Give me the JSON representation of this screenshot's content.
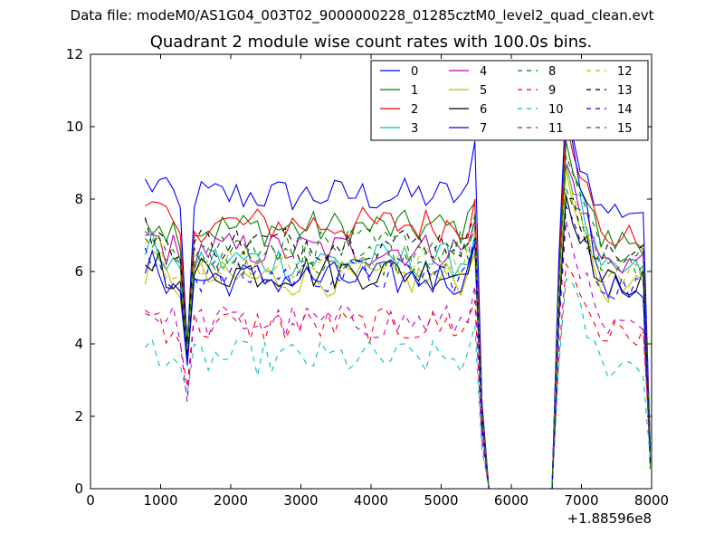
{
  "chart_data": {
    "type": "line",
    "suptitle": "Data file: modeM0/AS1G04_003T02_9000000228_01285cztM0_level2_quad_clean.evt",
    "title": "Quadrant 2 module wise count rates with 100.0s bins.",
    "xlabel": "",
    "ylabel": "",
    "xlim": [
      0,
      8000
    ],
    "ylim": [
      0,
      12
    ],
    "x_offset_label": "+1.88596e8",
    "xticks": [
      "0",
      "1000",
      "2000",
      "3000",
      "4000",
      "5000",
      "6000",
      "7000",
      "8000"
    ],
    "yticks": [
      "0",
      "2",
      "4",
      "6",
      "8",
      "10",
      "12"
    ],
    "grid": false,
    "legend_position": "top-right",
    "legend_columns": 4,
    "segment1_x": [
      780,
      880,
      980,
      1080,
      1180,
      1280,
      1380,
      1480,
      1580,
      1680,
      1780,
      1880,
      1980,
      2080,
      2180,
      2280,
      2380,
      2480,
      2580,
      2680,
      2780,
      2880,
      2980,
      3080,
      3180,
      3280,
      3380,
      3480,
      3580,
      3680,
      3780,
      3880,
      3980,
      4080,
      4180,
      4280,
      4380,
      4480,
      4580,
      4680,
      4780,
      4880,
      4980,
      5080,
      5180,
      5280,
      5380,
      5480,
      5580,
      5680
    ],
    "segment2_x": [
      6580,
      6680,
      6780,
      6880,
      6980,
      7080,
      7180,
      7280,
      7380,
      7480,
      7580,
      7680,
      7780,
      7880,
      7980
    ],
    "series": [
      {
        "name": "0",
        "color": "#0000ff",
        "dash": "",
        "base": 8.1,
        "peak": 9.6,
        "peak2": 10.0,
        "dip": 3.9
      },
      {
        "name": "1",
        "color": "#008000",
        "dash": "",
        "base": 7.2,
        "peak": 7.9,
        "peak2": 9.6,
        "dip": 4.0
      },
      {
        "name": "2",
        "color": "#ff0000",
        "dash": "",
        "base": 7.3,
        "peak": 8.0,
        "peak2": 10.2,
        "dip": 3.7
      },
      {
        "name": "3",
        "color": "#00bfbf",
        "dash": "",
        "base": 6.3,
        "peak": 7.0,
        "peak2": 9.0,
        "dip": 3.6
      },
      {
        "name": "4",
        "color": "#bf00bf",
        "dash": "",
        "base": 6.6,
        "peak": 7.4,
        "peak2": 9.0,
        "dip": 3.8
      },
      {
        "name": "5",
        "color": "#bfbf00",
        "dash": "",
        "base": 5.8,
        "peak": 6.5,
        "peak2": 8.8,
        "dip": 3.5
      },
      {
        "name": "6",
        "color": "#000000",
        "dash": "",
        "base": 6.0,
        "peak": 6.8,
        "peak2": 8.1,
        "dip": 3.6
      },
      {
        "name": "7",
        "color": "#0000ff",
        "dash": "",
        "base": 5.8,
        "peak": 6.8,
        "peak2": 10.8,
        "dip": 3.4
      },
      {
        "name": "8",
        "color": "#008000",
        "dash": "6,6",
        "base": 6.4,
        "peak": 7.1,
        "peak2": 8.3,
        "dip": 3.8
      },
      {
        "name": "9",
        "color": "#ff0000",
        "dash": "6,6",
        "base": 4.5,
        "peak": 5.2,
        "peak2": 6.2,
        "dip": 2.8
      },
      {
        "name": "10",
        "color": "#00bfbf",
        "dash": "6,6",
        "base": 3.6,
        "peak": 4.5,
        "peak2": 5.8,
        "dip": 2.6
      },
      {
        "name": "11",
        "color": "#bf00bf",
        "dash": "6,6",
        "base": 4.6,
        "peak": 5.6,
        "peak2": 7.4,
        "dip": 2.4
      },
      {
        "name": "12",
        "color": "#bfbf00",
        "dash": "6,6",
        "base": 6.3,
        "peak": 7.2,
        "peak2": 9.0,
        "dip": 3.8
      },
      {
        "name": "13",
        "color": "#000000",
        "dash": "6,6",
        "base": 6.8,
        "peak": 7.5,
        "peak2": 8.0,
        "dip": 4.0
      },
      {
        "name": "14",
        "color": "#0000ff",
        "dash": "6,6",
        "base": 5.9,
        "peak": 6.9,
        "peak2": 7.8,
        "dip": 3.5
      },
      {
        "name": "15",
        "color": "#008000",
        "dash": "6,6",
        "base": 6.7,
        "peak": 7.6,
        "peak2": 9.2,
        "dip": 3.9
      }
    ]
  }
}
